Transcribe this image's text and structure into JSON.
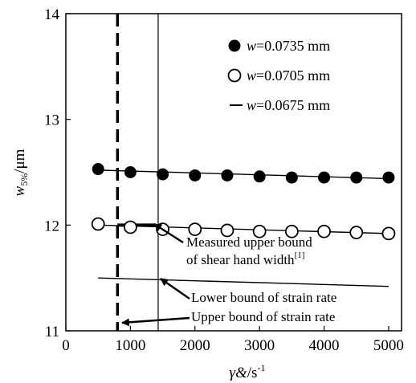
{
  "chart_data": {
    "type": "scatter",
    "title": "",
    "xlabel": {
      "symbol": "γ&",
      "unit": "/s",
      "sup": "-1"
    },
    "ylabel": {
      "symbol": "w",
      "sub": "5%",
      "unit": "/μm"
    },
    "xlim": [
      0,
      5200
    ],
    "ylim": [
      11,
      14
    ],
    "x_ticks": [
      0,
      1000,
      2000,
      3000,
      4000,
      5000
    ],
    "y_ticks": [
      11,
      12,
      13,
      14
    ],
    "grid": false,
    "legend_position": "top-right",
    "series": [
      {
        "name": "w=0.0735 mm",
        "legend_var": "w",
        "legend_val": "=0.0735 mm",
        "marker": "filled-circle",
        "points": [
          [
            500,
            12.53
          ],
          [
            1000,
            12.5
          ],
          [
            1500,
            12.48
          ],
          [
            2000,
            12.47
          ],
          [
            2500,
            12.47
          ],
          [
            3000,
            12.46
          ],
          [
            3500,
            12.45
          ],
          [
            4000,
            12.45
          ],
          [
            4500,
            12.45
          ],
          [
            5000,
            12.45
          ]
        ],
        "fit": [
          [
            500,
            12.52
          ],
          [
            5000,
            12.44
          ]
        ]
      },
      {
        "name": "w=0.0705 mm",
        "legend_var": "w",
        "legend_val": "=0.0705 mm",
        "marker": "open-circle",
        "points": [
          [
            500,
            12.01
          ],
          [
            1000,
            11.98
          ],
          [
            1500,
            11.96
          ],
          [
            2000,
            11.96
          ],
          [
            2500,
            11.95
          ],
          [
            3000,
            11.94
          ],
          [
            3500,
            11.94
          ],
          [
            4000,
            11.94
          ],
          [
            4500,
            11.93
          ],
          [
            5000,
            11.92
          ]
        ],
        "fit": [
          [
            500,
            12.0
          ],
          [
            5000,
            11.92
          ]
        ]
      },
      {
        "name": "w=0.0675 mm",
        "legend_var": "w",
        "legend_val": "=0.0675 mm",
        "marker": "line",
        "fit": [
          [
            500,
            11.5
          ],
          [
            5000,
            11.42
          ]
        ]
      }
    ],
    "reference_lines": {
      "measured_upper_bound_shear_band_y": 12.0,
      "measured_upper_bound_x_range": [
        800,
        1400
      ],
      "lower_bound_strain_rate_x": 1430,
      "upper_bound_strain_rate_x": 800
    },
    "annotations": [
      {
        "id": "measured",
        "lines": [
          "Measured upper bound",
          "of shear hand width"
        ],
        "sup": "[1]"
      },
      {
        "id": "lower",
        "lines": [
          "Lower bound of strain rate"
        ]
      },
      {
        "id": "upper",
        "lines": [
          "Upper bound of strain rate"
        ]
      }
    ]
  }
}
